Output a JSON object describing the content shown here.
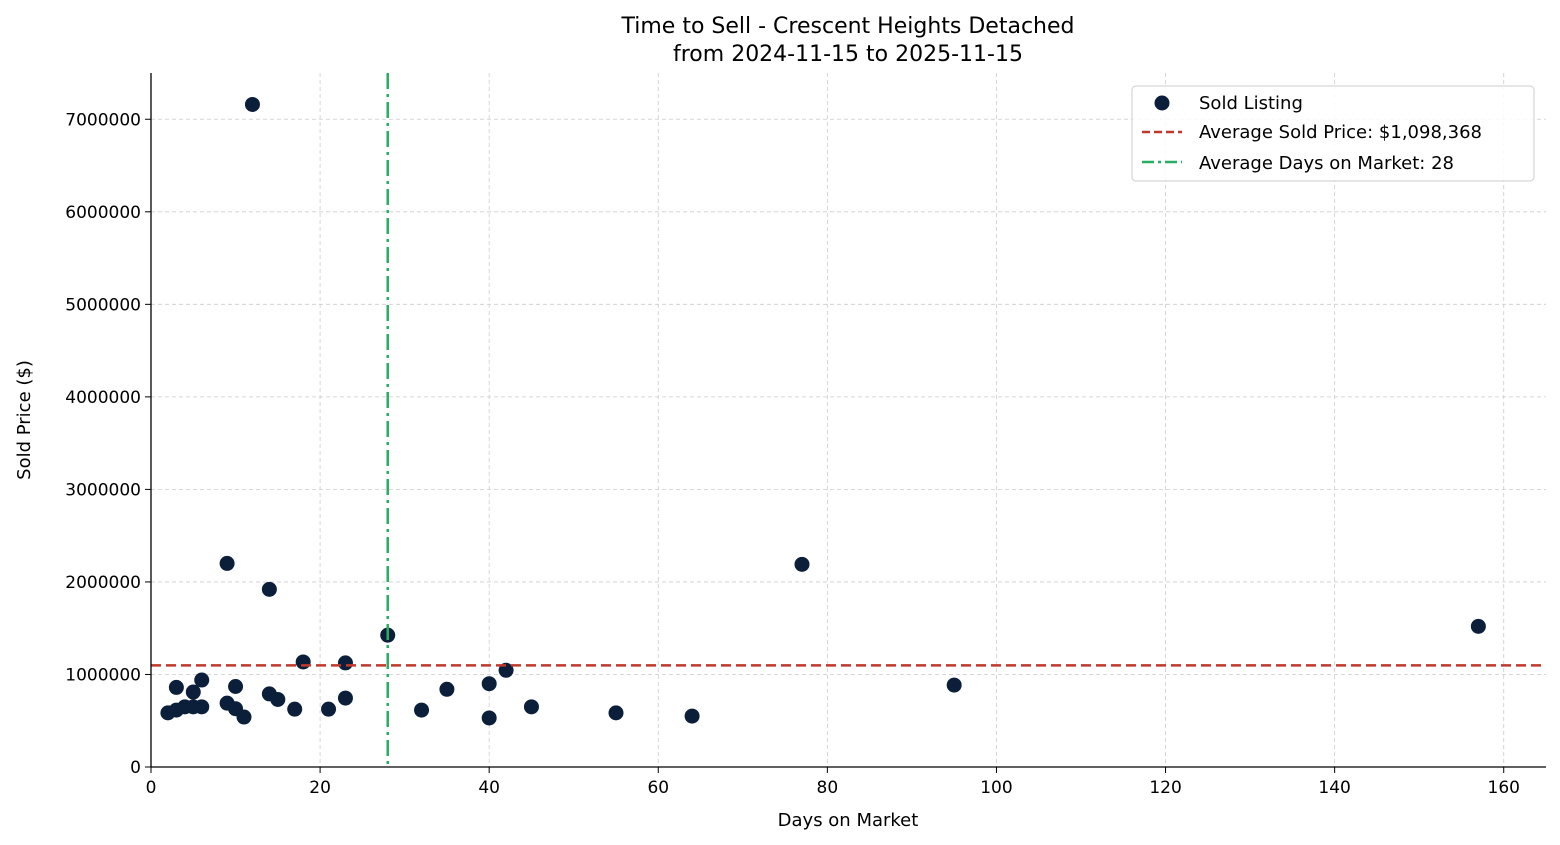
{
  "chart_data": {
    "type": "scatter",
    "title": "Time to Sell - Crescent Heights Detached",
    "subtitle": "from 2024-11-15 to 2025-11-15",
    "xlabel": "Days on Market",
    "ylabel": "Sold Price ($)",
    "xlim": [
      0,
      165
    ],
    "ylim": [
      0,
      7500000
    ],
    "xticks": [
      0,
      20,
      40,
      60,
      80,
      100,
      120,
      140,
      160
    ],
    "yticks": [
      0,
      1000000,
      2000000,
      3000000,
      4000000,
      5000000,
      6000000,
      7000000
    ],
    "grid": true,
    "legend_position": "top-right",
    "series": [
      {
        "name": "Sold Listing",
        "color": "#0b1f3a",
        "points": [
          [
            2,
            585000
          ],
          [
            3,
            615000
          ],
          [
            4,
            650000
          ],
          [
            5,
            650000
          ],
          [
            6,
            650000
          ],
          [
            3,
            860000
          ],
          [
            5,
            810000
          ],
          [
            6,
            940000
          ],
          [
            9,
            690000
          ],
          [
            10,
            630000
          ],
          [
            11,
            540000
          ],
          [
            10,
            870000
          ],
          [
            14,
            790000
          ],
          [
            15,
            730000
          ],
          [
            17,
            625000
          ],
          [
            18,
            1135000
          ],
          [
            21,
            625000
          ],
          [
            23,
            745000
          ],
          [
            23,
            1125000
          ],
          [
            28,
            1425000
          ],
          [
            32,
            615000
          ],
          [
            35,
            840000
          ],
          [
            40,
            900000
          ],
          [
            40,
            530000
          ],
          [
            42,
            1045000
          ],
          [
            45,
            650000
          ],
          [
            55,
            585000
          ],
          [
            64,
            550000
          ],
          [
            77,
            2190000
          ],
          [
            95,
            885000
          ],
          [
            157,
            1520000
          ],
          [
            9,
            2200000
          ],
          [
            14,
            1920000
          ],
          [
            12,
            7160000
          ]
        ]
      }
    ],
    "reference_lines": [
      {
        "name": "Average Sold Price: $1,098,368",
        "axis": "y",
        "value": 1098368,
        "color": "#c0392b",
        "style": "dashed"
      },
      {
        "name": "Average Days on Market: 28",
        "axis": "x",
        "value": 28,
        "color": "#27ae60",
        "style": "dashdot"
      }
    ]
  }
}
